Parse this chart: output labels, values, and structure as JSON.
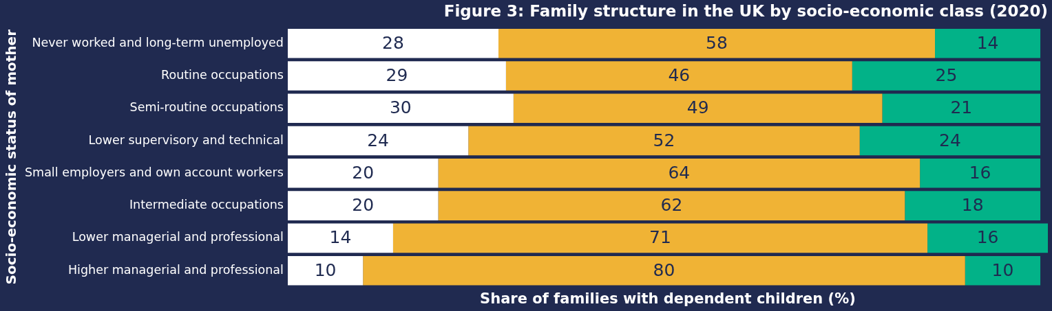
{
  "chart_data": {
    "type": "bar",
    "orientation": "horizontal",
    "stacked": true,
    "data_labels": true,
    "tick_labels": "y",
    "title": "Figure 3: Family structure in the UK by socio-economic class (2020)",
    "xlabel": "Share of families with dependent children (%)",
    "ylabel": "Socio-economic status of mother",
    "categories": [
      "Never worked and long-term unemployed",
      "Routine occupations",
      "Semi-routine occupations",
      "Lower supervisory and technical",
      "Small employers and own account workers",
      "Intermediate occupations",
      "Lower managerial and professional",
      "Higher managerial and professional"
    ],
    "xlim": [
      0,
      101
    ],
    "series": [
      {
        "color": "#ffffff",
        "values": [
          28,
          29,
          30,
          24,
          20,
          20,
          14,
          10
        ]
      },
      {
        "color": "#f0b335",
        "values": [
          58,
          46,
          49,
          52,
          64,
          62,
          71,
          80
        ]
      },
      {
        "color": "#02b288",
        "values": [
          14,
          25,
          21,
          24,
          16,
          18,
          16,
          10
        ]
      }
    ]
  }
}
